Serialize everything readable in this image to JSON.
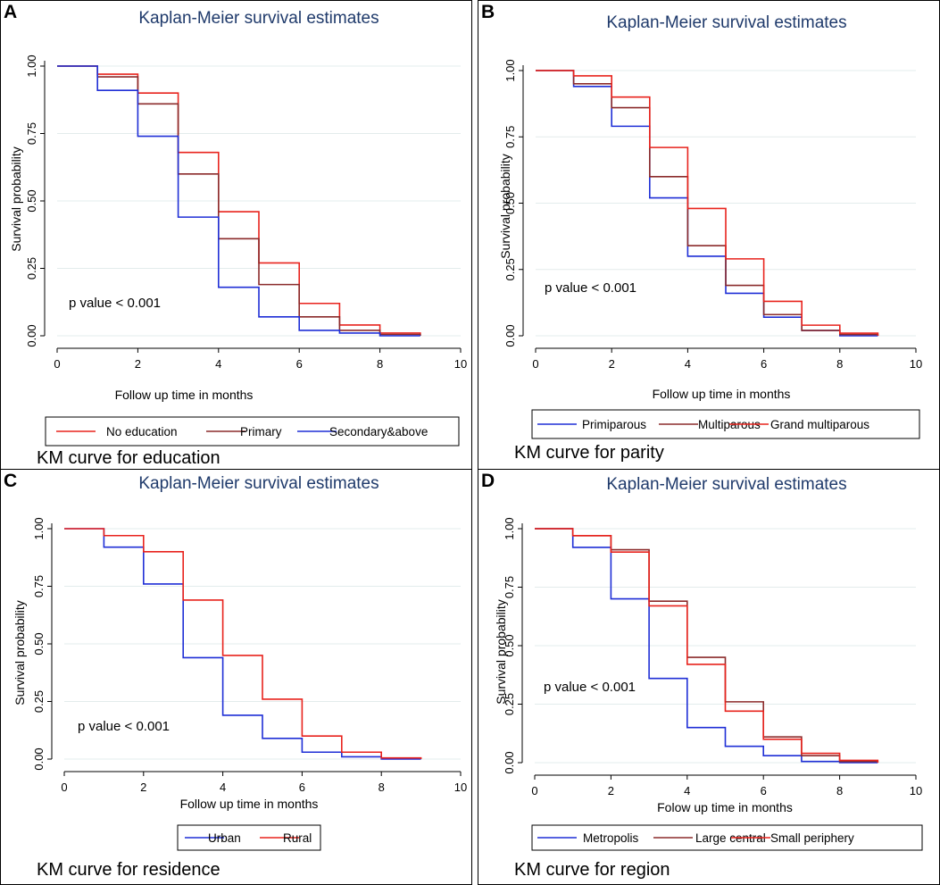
{
  "figure": {
    "chart_data": [
      {
        "panel": "A",
        "type": "line",
        "step": true,
        "title": "Kaplan-Meier survival estimates",
        "xlabel": "Follow up time in months",
        "ylabel": "Survival probability",
        "xlim": [
          0,
          10
        ],
        "ylim": [
          0,
          1
        ],
        "xticks": [
          "0",
          "2",
          "4",
          "6",
          "8",
          "10"
        ],
        "yticks": [
          "0.00",
          "0.25",
          "0.50",
          "0.75",
          "1.00"
        ],
        "annotation": "p value < 0.001",
        "caption": "KM curve for education",
        "x": [
          0,
          1,
          2,
          3,
          4,
          5,
          6,
          7,
          8,
          9
        ],
        "series": [
          {
            "name": "No education",
            "color": "#e8231d",
            "values": [
              1.0,
              0.97,
              0.9,
              0.68,
              0.46,
              0.27,
              0.12,
              0.04,
              0.01,
              0.0
            ]
          },
          {
            "name": "Primary",
            "color": "#8b2b2b",
            "values": [
              1.0,
              0.96,
              0.86,
              0.6,
              0.36,
              0.19,
              0.07,
              0.02,
              0.005,
              0.0
            ]
          },
          {
            "name": "Secondary&above",
            "color": "#1f2fd6",
            "values": [
              1.0,
              0.91,
              0.74,
              0.44,
              0.18,
              0.07,
              0.02,
              0.01,
              0.0,
              0.0
            ]
          }
        ]
      },
      {
        "panel": "B",
        "type": "line",
        "step": true,
        "title": "Kaplan-Meier survival estimates",
        "xlabel": "Follow up time in months",
        "ylabel": "Survival probability",
        "xlim": [
          0,
          10
        ],
        "ylim": [
          0,
          1
        ],
        "xticks": [
          "0",
          "2",
          "4",
          "6",
          "8",
          "10"
        ],
        "yticks": [
          "0.00",
          "0.25",
          "0.50",
          "0.75",
          "1.00"
        ],
        "annotation": "p value < 0.001",
        "caption": "KM curve for parity",
        "x": [
          0,
          1,
          2,
          3,
          4,
          5,
          6,
          7,
          8,
          9
        ],
        "series": [
          {
            "name": "Primiparous",
            "color": "#1f2fd6",
            "values": [
              1.0,
              0.94,
              0.79,
              0.52,
              0.3,
              0.16,
              0.07,
              0.02,
              0.0,
              0.0
            ]
          },
          {
            "name": "Multiparous",
            "color": "#8b2b2b",
            "values": [
              1.0,
              0.95,
              0.86,
              0.6,
              0.34,
              0.19,
              0.08,
              0.02,
              0.005,
              0.0
            ]
          },
          {
            "name": "Grand multiparous",
            "color": "#e8231d",
            "values": [
              1.0,
              0.98,
              0.9,
              0.71,
              0.48,
              0.29,
              0.13,
              0.04,
              0.01,
              0.0
            ]
          }
        ]
      },
      {
        "panel": "C",
        "type": "line",
        "step": true,
        "title": "Kaplan-Meier survival estimates",
        "xlabel": "Follow up time in months",
        "ylabel": "Survival probability",
        "xlim": [
          0,
          10
        ],
        "ylim": [
          0,
          1
        ],
        "xticks": [
          "0",
          "2",
          "4",
          "6",
          "8",
          "10"
        ],
        "yticks": [
          "0.00",
          "0.25",
          "0.50",
          "0.75",
          "1.00"
        ],
        "annotation": "p value < 0.001",
        "caption": "KM curve for residence",
        "x": [
          0,
          1,
          2,
          3,
          4,
          5,
          6,
          7,
          8,
          9
        ],
        "series": [
          {
            "name": "Urban",
            "color": "#1f2fd6",
            "values": [
              1.0,
              0.92,
              0.76,
              0.44,
              0.19,
              0.09,
              0.03,
              0.01,
              0.0,
              0.0
            ]
          },
          {
            "name": "Rural",
            "color": "#e8231d",
            "values": [
              1.0,
              0.97,
              0.9,
              0.69,
              0.45,
              0.26,
              0.1,
              0.03,
              0.005,
              0.0
            ]
          }
        ]
      },
      {
        "panel": "D",
        "type": "line",
        "step": true,
        "title": "Kaplan-Meier survival estimates",
        "xlabel": "Folow up time in months",
        "ylabel": "Survival probability",
        "xlim": [
          0,
          10
        ],
        "ylim": [
          0,
          1
        ],
        "xticks": [
          "0",
          "2",
          "4",
          "6",
          "8",
          "10"
        ],
        "yticks": [
          "0.00",
          "0.25",
          "0.50",
          "0.75",
          "1.00"
        ],
        "annotation": "p value < 0.001",
        "caption": "KM curve for region",
        "x": [
          0,
          1,
          2,
          3,
          4,
          5,
          6,
          7,
          8,
          9
        ],
        "series": [
          {
            "name": "Metropolis",
            "color": "#1f2fd6",
            "values": [
              1.0,
              0.92,
              0.7,
              0.36,
              0.15,
              0.07,
              0.03,
              0.005,
              0.0,
              0.0
            ]
          },
          {
            "name": "Large central",
            "color": "#8b2b2b",
            "values": [
              1.0,
              0.97,
              0.91,
              0.69,
              0.45,
              0.26,
              0.11,
              0.03,
              0.005,
              0.0
            ]
          },
          {
            "name": "Small periphery",
            "color": "#e8231d",
            "values": [
              1.0,
              0.97,
              0.9,
              0.67,
              0.42,
              0.22,
              0.1,
              0.04,
              0.01,
              0.0
            ]
          }
        ]
      }
    ]
  }
}
